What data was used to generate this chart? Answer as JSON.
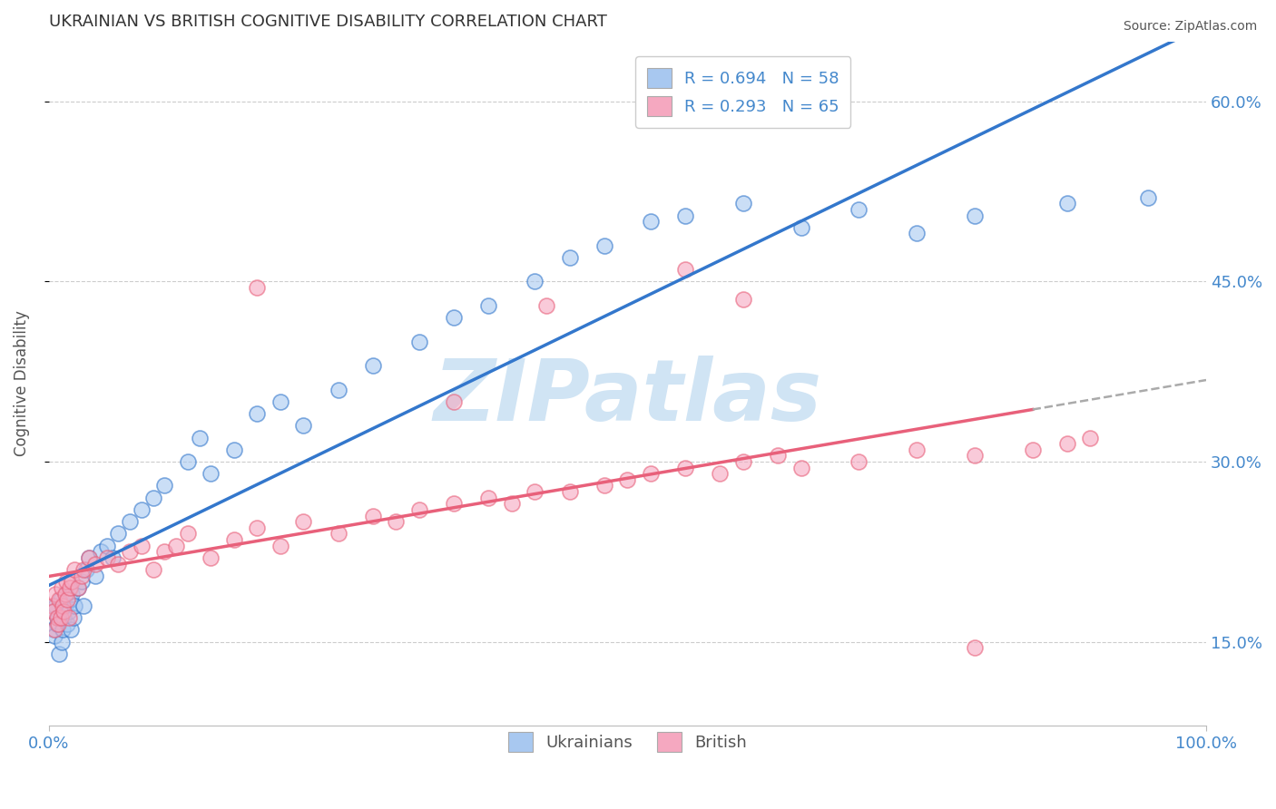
{
  "title": "UKRAINIAN VS BRITISH COGNITIVE DISABILITY CORRELATION CHART",
  "source": "Source: ZipAtlas.com",
  "ylabel": "Cognitive Disability",
  "xlim": [
    0,
    100
  ],
  "ylim": [
    8,
    65
  ],
  "yticks": [
    15,
    30,
    45,
    60
  ],
  "xtick_labels": [
    "0.0%",
    "100.0%"
  ],
  "ytick_labels": [
    "15.0%",
    "30.0%",
    "45.0%",
    "60.0%"
  ],
  "legend_labels": [
    "Ukrainians",
    "British"
  ],
  "ukrainian_R": 0.694,
  "ukrainian_N": 58,
  "british_R": 0.293,
  "british_N": 65,
  "ukrainian_color": "#A8C8F0",
  "british_color": "#F5A8C0",
  "ukrainian_line_color": "#3377CC",
  "british_line_color": "#E8607A",
  "title_color": "#333333",
  "axis_label_color": "#555555",
  "tick_color": "#4488CC",
  "watermark_color": "#D0E4F4",
  "background_color": "#FFFFFF",
  "grid_color": "#CCCCCC",
  "ukr_x": [
    0.3,
    0.4,
    0.5,
    0.6,
    0.7,
    0.8,
    0.9,
    1.0,
    1.1,
    1.2,
    1.3,
    1.4,
    1.5,
    1.6,
    1.7,
    1.8,
    1.9,
    2.0,
    2.1,
    2.2,
    2.5,
    2.8,
    3.0,
    3.2,
    3.5,
    4.0,
    4.5,
    5.0,
    5.5,
    6.0,
    7.0,
    8.0,
    9.0,
    10.0,
    12.0,
    13.0,
    14.0,
    16.0,
    18.0,
    20.0,
    22.0,
    25.0,
    28.0,
    32.0,
    35.0,
    38.0,
    42.0,
    45.0,
    48.0,
    52.0,
    55.0,
    60.0,
    65.0,
    70.0,
    75.0,
    80.0,
    88.0,
    95.0
  ],
  "ukr_y": [
    17.5,
    16.0,
    15.5,
    18.0,
    16.5,
    17.0,
    14.0,
    18.5,
    15.0,
    16.0,
    17.0,
    18.0,
    19.0,
    16.5,
    17.5,
    18.5,
    16.0,
    19.0,
    17.0,
    18.0,
    19.5,
    20.0,
    18.0,
    21.0,
    22.0,
    20.5,
    22.5,
    23.0,
    22.0,
    24.0,
    25.0,
    26.0,
    27.0,
    28.0,
    30.0,
    32.0,
    29.0,
    31.0,
    34.0,
    35.0,
    33.0,
    36.0,
    38.0,
    40.0,
    42.0,
    43.0,
    45.0,
    47.0,
    48.0,
    50.0,
    50.5,
    51.5,
    49.5,
    51.0,
    49.0,
    50.5,
    51.5,
    52.0
  ],
  "brit_x": [
    0.3,
    0.4,
    0.5,
    0.6,
    0.7,
    0.8,
    0.9,
    1.0,
    1.1,
    1.2,
    1.3,
    1.4,
    1.5,
    1.6,
    1.7,
    1.8,
    2.0,
    2.2,
    2.5,
    2.8,
    3.0,
    3.5,
    4.0,
    5.0,
    6.0,
    7.0,
    8.0,
    9.0,
    10.0,
    11.0,
    12.0,
    14.0,
    16.0,
    18.0,
    20.0,
    22.0,
    25.0,
    28.0,
    30.0,
    32.0,
    35.0,
    38.0,
    40.0,
    42.0,
    45.0,
    48.0,
    50.0,
    52.0,
    55.0,
    58.0,
    60.0,
    63.0,
    65.0,
    70.0,
    75.0,
    80.0,
    85.0,
    88.0,
    90.0,
    18.0,
    43.0,
    55.0,
    60.0,
    80.0,
    35.0
  ],
  "brit_y": [
    18.0,
    17.5,
    16.0,
    19.0,
    17.0,
    16.5,
    18.5,
    17.0,
    19.5,
    18.0,
    17.5,
    19.0,
    20.0,
    18.5,
    17.0,
    19.5,
    20.0,
    21.0,
    19.5,
    20.5,
    21.0,
    22.0,
    21.5,
    22.0,
    21.5,
    22.5,
    23.0,
    21.0,
    22.5,
    23.0,
    24.0,
    22.0,
    23.5,
    24.5,
    23.0,
    25.0,
    24.0,
    25.5,
    25.0,
    26.0,
    26.5,
    27.0,
    26.5,
    27.5,
    27.5,
    28.0,
    28.5,
    29.0,
    29.5,
    29.0,
    30.0,
    30.5,
    29.5,
    30.0,
    31.0,
    30.5,
    31.0,
    31.5,
    32.0,
    44.5,
    43.0,
    46.0,
    43.5,
    14.5,
    35.0
  ]
}
